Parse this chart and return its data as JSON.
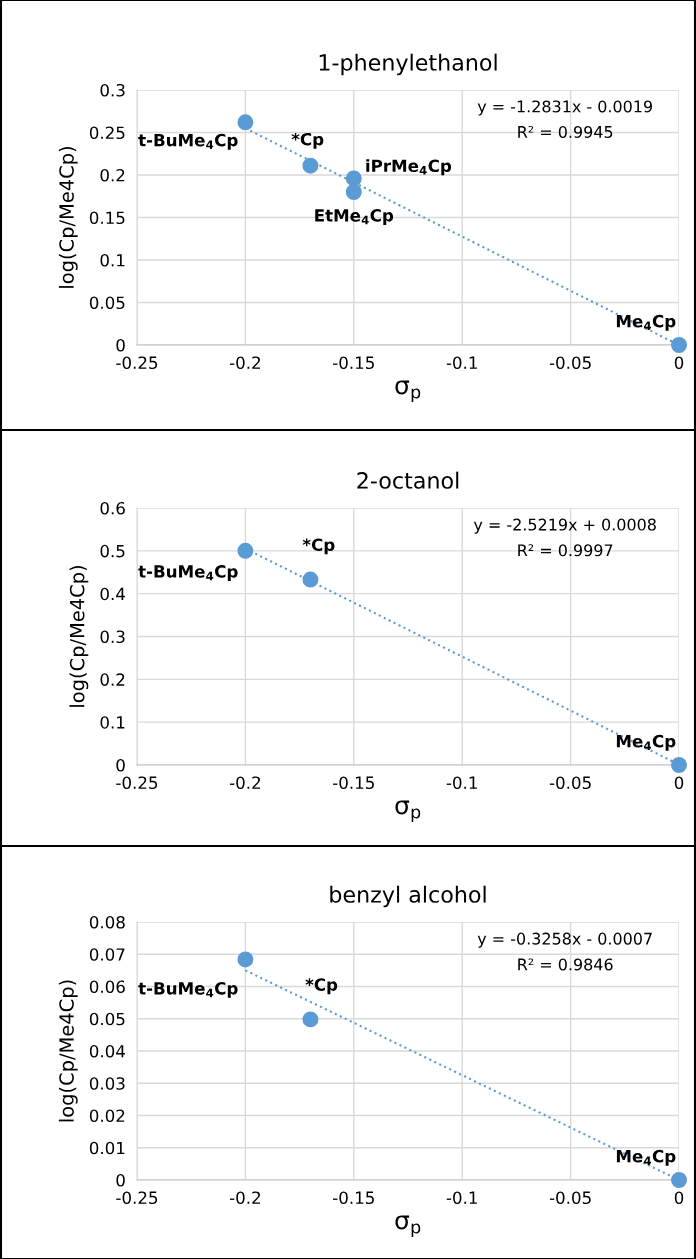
{
  "chart_data": [
    {
      "type": "scatter",
      "title": "1-phenylethanol",
      "xlabel": "σ$_{p}$",
      "ylabel": "log(Cp/Me4Cp)",
      "xlim": [
        -0.25,
        0
      ],
      "xticks": [
        -0.25,
        -0.2,
        -0.15,
        -0.1,
        -0.05,
        0
      ],
      "ylim": [
        0,
        0.3
      ],
      "yticks": [
        0,
        0.05,
        0.1,
        0.15,
        0.2,
        0.25,
        0.3
      ],
      "grid": true,
      "series": [
        {
          "marker": "circle",
          "color": "#5b9bd5",
          "x": [
            -0.2,
            -0.17,
            -0.15,
            -0.15,
            0
          ],
          "values": [
            0.262,
            0.211,
            0.196,
            0.18,
            0
          ]
        },
        {
          "type": "line",
          "line_style": "dotted",
          "color": "#5b9bd5",
          "x": [
            -0.2,
            0
          ],
          "values": [
            0.255,
            0
          ]
        }
      ],
      "annotations": [
        {
          "text": "t-BuMe$_{4}$Cp",
          "x": -0.2,
          "y": 0.262
        },
        {
          "text": "*Cp",
          "x": -0.17,
          "y": 0.211
        },
        {
          "text": "iPrMe$_{4}$Cp",
          "x": -0.15,
          "y": 0.196
        },
        {
          "text": "EtMe$_{4}$Cp",
          "x": -0.15,
          "y": 0.18
        },
        {
          "text": "Me$_{4}$Cp",
          "x": 0,
          "y": 0
        },
        "y = -1.2831x - 0.0019",
        "R² = 0.9945"
      ]
    },
    {
      "type": "scatter",
      "title": "2-octanol",
      "xlabel": "σ$_{p}$",
      "ylabel": "log(Cp/Me4Cp)",
      "xlim": [
        -0.25,
        0
      ],
      "xticks": [
        -0.25,
        -0.2,
        -0.15,
        -0.1,
        -0.05,
        0
      ],
      "ylim": [
        0,
        0.6
      ],
      "yticks": [
        0,
        0.1,
        0.2,
        0.3,
        0.4,
        0.5,
        0.6
      ],
      "grid": true,
      "series": [
        {
          "marker": "circle",
          "color": "#5b9bd5",
          "x": [
            -0.2,
            -0.17,
            0
          ],
          "values": [
            0.5,
            0.433,
            0
          ]
        },
        {
          "type": "line",
          "line_style": "dotted",
          "color": "#5b9bd5",
          "x": [
            -0.2,
            0
          ],
          "values": [
            0.505,
            0.001
          ]
        }
      ],
      "annotations": [
        {
          "text": "t-BuMe$_{4}$Cp",
          "x": -0.2,
          "y": 0.5
        },
        {
          "text": "*Cp",
          "x": -0.17,
          "y": 0.433
        },
        {
          "text": "Me$_{4}$Cp",
          "x": 0,
          "y": 0
        },
        "y = -2.5219x + 0.0008",
        "R² = 0.9997"
      ]
    },
    {
      "type": "scatter",
      "title": "benzyl alcohol",
      "xlabel": "σ$_{p}$",
      "ylabel": "log(Cp/Me4Cp)",
      "xlim": [
        -0.25,
        0
      ],
      "xticks": [
        -0.25,
        -0.2,
        -0.15,
        -0.1,
        -0.05,
        0
      ],
      "ylim": [
        0,
        0.08
      ],
      "yticks": [
        0,
        0.01,
        0.02,
        0.03,
        0.04,
        0.05,
        0.06,
        0.07,
        0.08
      ],
      "grid": true,
      "series": [
        {
          "marker": "circle",
          "color": "#5b9bd5",
          "x": [
            -0.2,
            -0.17,
            0
          ],
          "values": [
            0.0684,
            0.0498,
            0
          ]
        },
        {
          "type": "line",
          "line_style": "dotted",
          "color": "#5b9bd5",
          "x": [
            -0.2,
            0
          ],
          "values": [
            0.065,
            0
          ]
        }
      ],
      "annotations": [
        {
          "text": "t-BuMe$_{4}$Cp",
          "x": -0.2,
          "y": 0.0684
        },
        {
          "text": "*Cp",
          "x": -0.17,
          "y": 0.0498
        },
        {
          "text": "Me$_{4}$Cp",
          "x": 0,
          "y": 0
        },
        "y = -0.3258x - 0.0007",
        "R² = 0.9846"
      ]
    }
  ]
}
